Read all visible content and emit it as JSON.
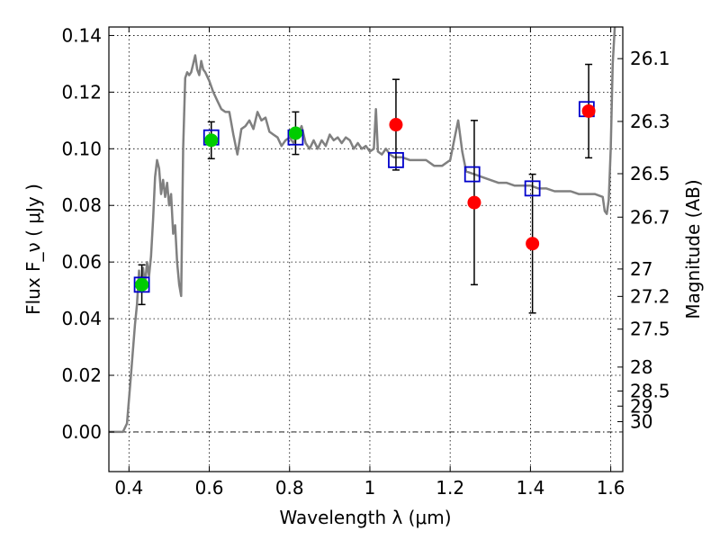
{
  "chart_data": {
    "type": "scatter",
    "xlabel": "Wavelength  λ (μm)",
    "ylabel_left": "Flux  F_ν  ( μJy )",
    "ylabel_right": "Magnitude (AB)",
    "xlim": [
      0.35,
      1.63
    ],
    "ylim": [
      -0.014,
      0.143
    ],
    "x_ticks": [
      0.4,
      0.6,
      0.8,
      1.0,
      1.2,
      1.4,
      1.6
    ],
    "x_tick_labels": [
      "0.4",
      "0.6",
      "0.8",
      "1",
      "1.2",
      "1.4",
      "1.6"
    ],
    "y_ticks": [
      0.0,
      0.02,
      0.04,
      0.06,
      0.08,
      0.1,
      0.12,
      0.14
    ],
    "y_tick_labels": [
      "0.00",
      "0.02",
      "0.04",
      "0.06",
      "0.08",
      "0.10",
      "0.12",
      "0.14"
    ],
    "right_ticks": [
      {
        "mag": 26.1,
        "label": "26.1"
      },
      {
        "mag": 26.3,
        "label": "26.3"
      },
      {
        "mag": 26.5,
        "label": "26.5"
      },
      {
        "mag": 26.7,
        "label": "26.7"
      },
      {
        "mag": 27.0,
        "label": "27"
      },
      {
        "mag": 27.2,
        "label": "27.2"
      },
      {
        "mag": 27.5,
        "label": "27.5"
      },
      {
        "mag": 28.0,
        "label": "28"
      },
      {
        "mag": 28.5,
        "label": "28.5"
      },
      {
        "mag": 29.0,
        "label": "29"
      },
      {
        "mag": 30.0,
        "label": "30"
      }
    ],
    "grid": true,
    "series": [
      {
        "kind": "line",
        "color": "#808080",
        "points": [
          [
            0.35,
            0.0
          ],
          [
            0.385,
            0.0
          ],
          [
            0.395,
            0.003
          ],
          [
            0.405,
            0.02
          ],
          [
            0.415,
            0.038
          ],
          [
            0.42,
            0.045
          ],
          [
            0.425,
            0.057
          ],
          [
            0.43,
            0.05
          ],
          [
            0.435,
            0.058
          ],
          [
            0.44,
            0.052
          ],
          [
            0.445,
            0.06
          ],
          [
            0.45,
            0.055
          ],
          [
            0.455,
            0.062
          ],
          [
            0.46,
            0.075
          ],
          [
            0.465,
            0.09
          ],
          [
            0.47,
            0.096
          ],
          [
            0.475,
            0.093
          ],
          [
            0.48,
            0.084
          ],
          [
            0.485,
            0.089
          ],
          [
            0.49,
            0.083
          ],
          [
            0.495,
            0.088
          ],
          [
            0.5,
            0.08
          ],
          [
            0.505,
            0.084
          ],
          [
            0.51,
            0.07
          ],
          [
            0.515,
            0.073
          ],
          [
            0.52,
            0.06
          ],
          [
            0.525,
            0.052
          ],
          [
            0.53,
            0.048
          ],
          [
            0.535,
            0.1
          ],
          [
            0.54,
            0.125
          ],
          [
            0.545,
            0.127
          ],
          [
            0.55,
            0.126
          ],
          [
            0.555,
            0.127
          ],
          [
            0.56,
            0.13
          ],
          [
            0.565,
            0.133
          ],
          [
            0.57,
            0.128
          ],
          [
            0.575,
            0.126
          ],
          [
            0.58,
            0.131
          ],
          [
            0.585,
            0.128
          ],
          [
            0.59,
            0.127
          ],
          [
            0.6,
            0.124
          ],
          [
            0.61,
            0.12
          ],
          [
            0.62,
            0.117
          ],
          [
            0.63,
            0.114
          ],
          [
            0.64,
            0.113
          ],
          [
            0.65,
            0.113
          ],
          [
            0.66,
            0.105
          ],
          [
            0.67,
            0.098
          ],
          [
            0.68,
            0.107
          ],
          [
            0.69,
            0.108
          ],
          [
            0.7,
            0.11
          ],
          [
            0.71,
            0.107
          ],
          [
            0.72,
            0.113
          ],
          [
            0.73,
            0.11
          ],
          [
            0.74,
            0.111
          ],
          [
            0.75,
            0.106
          ],
          [
            0.76,
            0.105
          ],
          [
            0.77,
            0.104
          ],
          [
            0.78,
            0.101
          ],
          [
            0.79,
            0.103
          ],
          [
            0.8,
            0.104
          ],
          [
            0.81,
            0.102
          ],
          [
            0.82,
            0.105
          ],
          [
            0.83,
            0.108
          ],
          [
            0.84,
            0.102
          ],
          [
            0.85,
            0.1
          ],
          [
            0.86,
            0.103
          ],
          [
            0.87,
            0.1
          ],
          [
            0.88,
            0.103
          ],
          [
            0.89,
            0.101
          ],
          [
            0.9,
            0.105
          ],
          [
            0.91,
            0.103
          ],
          [
            0.92,
            0.104
          ],
          [
            0.93,
            0.102
          ],
          [
            0.94,
            0.104
          ],
          [
            0.95,
            0.103
          ],
          [
            0.96,
            0.1
          ],
          [
            0.97,
            0.102
          ],
          [
            0.98,
            0.1
          ],
          [
            0.99,
            0.101
          ],
          [
            1.0,
            0.099
          ],
          [
            1.01,
            0.1
          ],
          [
            1.015,
            0.114
          ],
          [
            1.02,
            0.099
          ],
          [
            1.03,
            0.098
          ],
          [
            1.04,
            0.1
          ],
          [
            1.05,
            0.098
          ],
          [
            1.06,
            0.097
          ],
          [
            1.08,
            0.097
          ],
          [
            1.1,
            0.096
          ],
          [
            1.12,
            0.096
          ],
          [
            1.14,
            0.096
          ],
          [
            1.16,
            0.094
          ],
          [
            1.18,
            0.094
          ],
          [
            1.2,
            0.096
          ],
          [
            1.21,
            0.103
          ],
          [
            1.22,
            0.11
          ],
          [
            1.23,
            0.099
          ],
          [
            1.24,
            0.092
          ],
          [
            1.26,
            0.091
          ],
          [
            1.28,
            0.09
          ],
          [
            1.3,
            0.089
          ],
          [
            1.32,
            0.088
          ],
          [
            1.34,
            0.088
          ],
          [
            1.36,
            0.087
          ],
          [
            1.38,
            0.087
          ],
          [
            1.4,
            0.087
          ],
          [
            1.42,
            0.086
          ],
          [
            1.44,
            0.086
          ],
          [
            1.46,
            0.085
          ],
          [
            1.48,
            0.085
          ],
          [
            1.5,
            0.085
          ],
          [
            1.52,
            0.084
          ],
          [
            1.54,
            0.084
          ],
          [
            1.56,
            0.084
          ],
          [
            1.58,
            0.083
          ],
          [
            1.585,
            0.078
          ],
          [
            1.59,
            0.077
          ],
          [
            1.595,
            0.082
          ],
          [
            1.6,
            0.1
          ],
          [
            1.605,
            0.13
          ],
          [
            1.61,
            0.143
          ]
        ]
      },
      {
        "kind": "squares",
        "color": "#0000cc",
        "points": [
          [
            0.432,
            0.052
          ],
          [
            0.605,
            0.104
          ],
          [
            0.815,
            0.104
          ],
          [
            1.065,
            0.096
          ],
          [
            1.255,
            0.091
          ],
          [
            1.405,
            0.086
          ],
          [
            1.54,
            0.114
          ]
        ]
      },
      {
        "kind": "circles",
        "color": "#00cc00",
        "points": [
          {
            "x": 0.432,
            "y": 0.052,
            "yerr": 0.007
          },
          {
            "x": 0.605,
            "y": 0.103,
            "yerr": 0.0065
          },
          {
            "x": 0.815,
            "y": 0.1055,
            "yerr": 0.0075
          }
        ]
      },
      {
        "kind": "circles",
        "color": "#ff0000",
        "points": [
          {
            "x": 1.065,
            "y": 0.1085,
            "yerr": 0.016
          },
          {
            "x": 1.26,
            "y": 0.081,
            "yerr": 0.029
          },
          {
            "x": 1.405,
            "y": 0.0665,
            "yerr": 0.0245
          },
          {
            "x": 1.545,
            "y": 0.1133,
            "yerr": 0.0165
          }
        ]
      }
    ]
  }
}
